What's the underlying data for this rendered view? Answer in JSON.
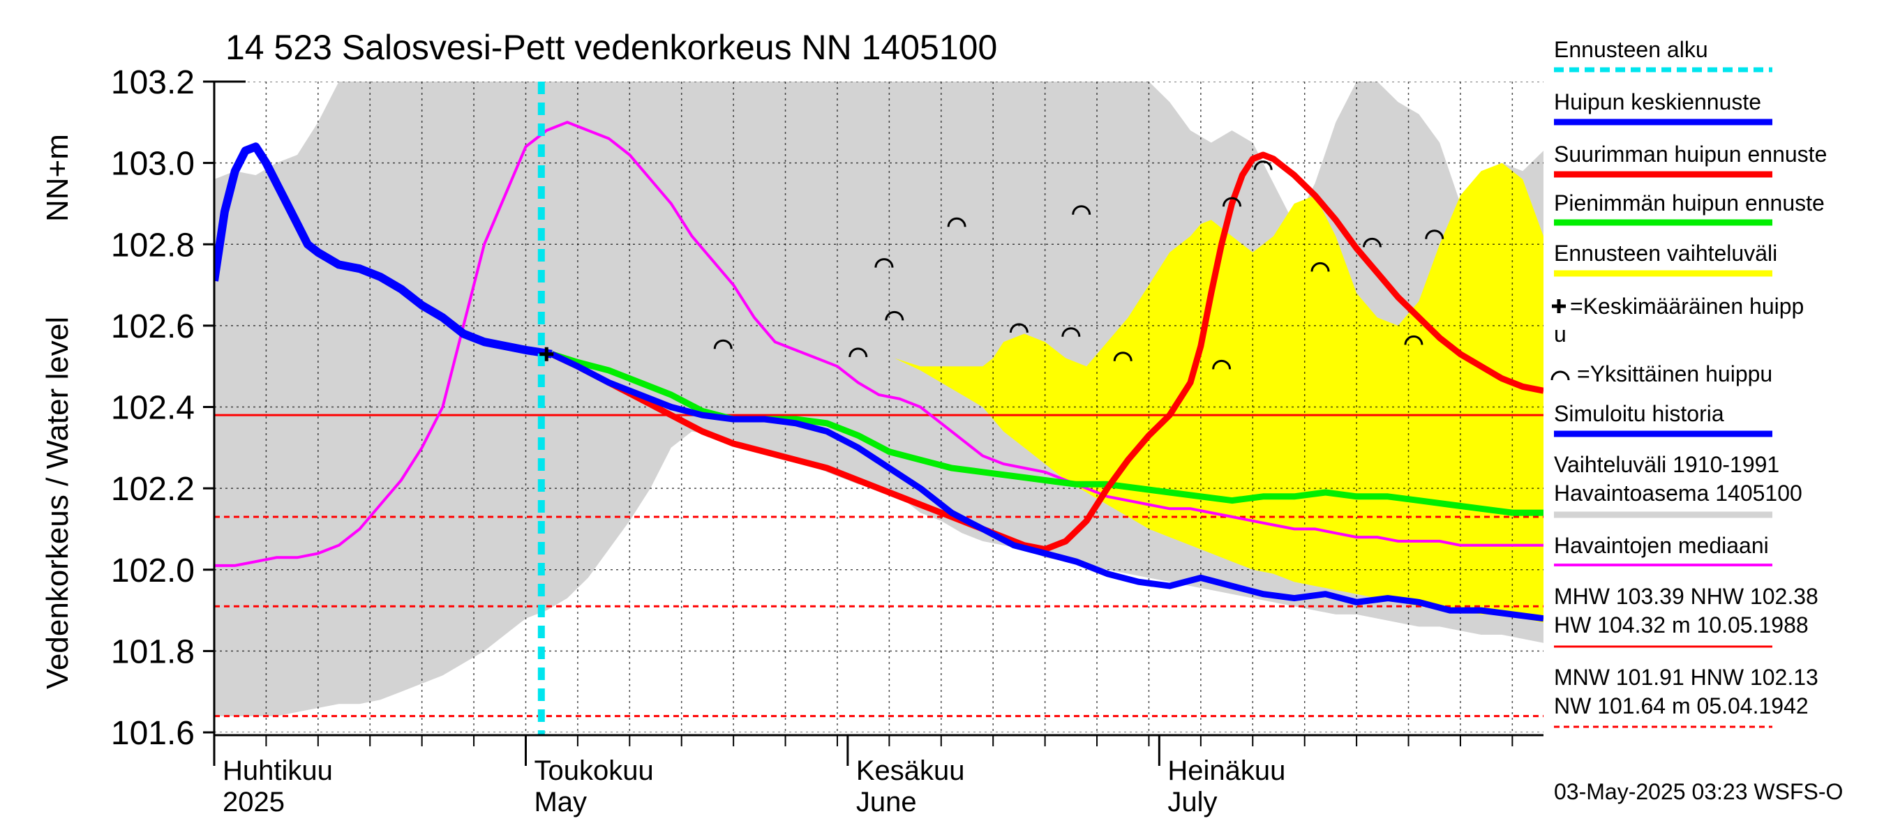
{
  "chart_data": {
    "type": "line",
    "title": "14 523 Salosvesi-Pett vedenkorkeus NN 1405100",
    "ylabel_fi": "Vedenkorkeus / Water level",
    "ylabel_unit": "NN+m",
    "ylim": [
      101.6,
      103.2
    ],
    "yticks": [
      "101.6",
      "101.8",
      "102.0",
      "102.2",
      "102.4",
      "102.6",
      "102.8",
      "103.0",
      "103.2"
    ],
    "x_domain_days": [
      -33,
      95
    ],
    "xaxis_start_date": "2025-03-31",
    "forecast_start_day": 32.5,
    "month_labels": [
      {
        "fi": "Huhtikuu",
        "en": "2025",
        "day": 0
      },
      {
        "fi": "Toukokuu",
        "en": "May",
        "day": 30
      },
      {
        "fi": "Kesäkuu",
        "en": "June",
        "day": 61
      },
      {
        "fi": "Heinäkuu",
        "en": "July",
        "day": 91
      }
    ],
    "grid": true,
    "legend_position": "right",
    "reference_lines": [
      {
        "name": "NHW",
        "value": 102.38,
        "style": "solid",
        "color": "#ff0000"
      },
      {
        "name": "HNW",
        "value": 102.13,
        "style": "dashed",
        "color": "#ff0000"
      },
      {
        "name": "MNW",
        "value": 101.91,
        "style": "dashed",
        "color": "#ff0000"
      },
      {
        "name": "NW",
        "value": 101.64,
        "style": "dashed",
        "color": "#ff0000"
      }
    ],
    "series": [
      {
        "name": "Vaihteluväli 1910-1991 Havaintoasema 1405100",
        "kind": "band",
        "color": "#d3d3d3",
        "x": [
          0,
          2,
          4,
          6,
          8,
          10,
          12,
          14,
          16,
          18,
          20,
          22,
          24,
          26,
          28,
          30,
          32,
          34,
          36,
          38,
          40,
          42,
          44,
          46,
          48,
          50,
          52,
          54,
          56,
          58,
          60,
          62,
          64,
          66,
          68,
          70,
          72,
          74,
          76,
          78,
          80,
          82,
          84,
          86,
          88,
          90,
          92,
          94,
          96,
          98,
          100,
          102,
          104,
          106,
          108,
          110,
          112,
          114,
          116,
          118,
          120,
          122,
          124,
          126,
          128
        ],
        "upper": [
          102.96,
          102.98,
          102.97,
          103.0,
          103.02,
          103.1,
          103.2,
          103.2,
          103.2,
          103.2,
          103.2,
          103.2,
          103.2,
          103.2,
          103.2,
          103.2,
          103.2,
          103.2,
          103.2,
          103.2,
          103.2,
          103.2,
          103.2,
          103.2,
          103.2,
          103.2,
          103.2,
          103.2,
          103.2,
          103.2,
          103.2,
          103.2,
          103.2,
          103.2,
          103.2,
          103.2,
          103.2,
          103.2,
          103.2,
          103.2,
          103.2,
          103.2,
          103.2,
          103.2,
          103.2,
          103.2,
          103.15,
          103.08,
          103.05,
          103.08,
          103.05,
          102.95,
          102.85,
          102.95,
          103.1,
          103.2,
          103.2,
          103.15,
          103.12,
          103.05,
          102.9,
          102.95,
          103.0,
          102.98,
          103.03
        ],
        "lower": [
          101.64,
          101.64,
          101.64,
          101.64,
          101.65,
          101.66,
          101.67,
          101.67,
          101.68,
          101.7,
          101.72,
          101.74,
          101.77,
          101.8,
          101.84,
          101.88,
          101.9,
          101.93,
          101.98,
          102.05,
          102.12,
          102.2,
          102.3,
          102.34,
          102.33,
          102.32,
          102.3,
          102.28,
          102.27,
          102.25,
          102.23,
          102.21,
          102.2,
          102.18,
          102.14,
          102.12,
          102.09,
          102.07,
          102.06,
          102.05,
          102.03,
          102.02,
          102.01,
          102.0,
          101.99,
          101.98,
          101.97,
          101.96,
          101.95,
          101.94,
          101.93,
          101.92,
          101.91,
          101.9,
          101.89,
          101.89,
          101.88,
          101.87,
          101.86,
          101.86,
          101.85,
          101.84,
          101.84,
          101.83,
          101.82
        ]
      },
      {
        "name": "Ennusteen vaihteluväli",
        "kind": "band",
        "color": "#ffff00",
        "x": [
          65.5,
          68,
          70,
          72,
          74,
          75,
          76,
          78,
          80,
          82,
          84,
          86,
          88,
          90,
          92,
          94,
          95,
          96,
          97,
          98,
          99,
          100,
          102,
          104,
          106,
          108,
          110,
          112,
          114,
          116,
          118,
          120,
          122,
          124,
          126,
          128
        ],
        "upper": [
          102.52,
          102.5,
          102.5,
          102.5,
          102.5,
          102.52,
          102.56,
          102.58,
          102.56,
          102.52,
          102.5,
          102.56,
          102.62,
          102.7,
          102.78,
          102.82,
          102.85,
          102.86,
          102.84,
          102.82,
          102.8,
          102.78,
          102.82,
          102.9,
          102.92,
          102.82,
          102.68,
          102.62,
          102.6,
          102.66,
          102.8,
          102.92,
          102.98,
          103.0,
          102.96,
          102.82
        ],
        "lower": [
          102.52,
          102.49,
          102.46,
          102.43,
          102.4,
          102.37,
          102.34,
          102.3,
          102.26,
          102.22,
          102.19,
          102.16,
          102.13,
          102.1,
          102.08,
          102.06,
          102.05,
          102.04,
          102.03,
          102.02,
          102.01,
          102.0,
          101.99,
          101.97,
          101.96,
          101.95,
          101.94,
          101.93,
          101.92,
          101.91,
          101.91,
          101.9,
          101.89,
          101.89,
          101.88,
          101.87
        ]
      },
      {
        "name": "Havaintojen mediaani",
        "kind": "line",
        "color": "#ff00ff",
        "x": [
          0,
          2,
          4,
          6,
          8,
          10,
          12,
          14,
          16,
          18,
          20,
          22,
          24,
          26,
          28,
          30,
          32,
          34,
          36,
          38,
          40,
          42,
          44,
          46,
          48,
          50,
          52,
          54,
          56,
          58,
          60,
          62,
          64,
          66,
          68,
          70,
          72,
          74,
          76,
          78,
          80,
          82,
          84,
          86,
          88,
          90,
          92,
          94,
          96,
          98,
          100,
          102,
          104,
          106,
          108,
          110,
          112,
          114,
          116,
          118,
          120,
          122,
          124,
          126,
          128
        ],
        "values": [
          102.01,
          102.01,
          102.02,
          102.03,
          102.03,
          102.04,
          102.06,
          102.1,
          102.16,
          102.22,
          102.3,
          102.4,
          102.6,
          102.8,
          102.92,
          103.04,
          103.08,
          103.1,
          103.08,
          103.06,
          103.02,
          102.96,
          102.9,
          102.82,
          102.76,
          102.7,
          102.62,
          102.56,
          102.54,
          102.52,
          102.5,
          102.46,
          102.43,
          102.42,
          102.4,
          102.36,
          102.32,
          102.28,
          102.26,
          102.25,
          102.24,
          102.22,
          102.2,
          102.18,
          102.17,
          102.16,
          102.15,
          102.15,
          102.14,
          102.13,
          102.12,
          102.11,
          102.1,
          102.1,
          102.09,
          102.08,
          102.08,
          102.07,
          102.07,
          102.07,
          102.06,
          102.06,
          102.06,
          102.06,
          102.06
        ]
      },
      {
        "name": "Simuloitu historia",
        "kind": "line",
        "color": "#0000ff",
        "x": [
          0,
          1,
          2,
          3,
          4,
          5,
          6,
          7,
          8,
          9,
          10,
          12,
          14,
          16,
          18,
          20,
          22,
          24,
          26,
          28,
          30,
          32.5
        ],
        "values": [
          102.71,
          102.88,
          102.98,
          103.03,
          103.04,
          103.0,
          102.95,
          102.9,
          102.85,
          102.8,
          102.78,
          102.75,
          102.74,
          102.72,
          102.69,
          102.65,
          102.62,
          102.58,
          102.56,
          102.55,
          102.54,
          102.53
        ]
      },
      {
        "name": "Huipun keskiennuste",
        "kind": "line",
        "color": "#0000ff",
        "x": [
          32.5,
          35,
          38,
          41,
          44,
          47,
          50,
          53,
          56,
          59,
          62,
          65,
          68,
          71,
          74,
          77,
          80,
          83,
          86,
          89,
          92,
          95,
          98,
          101,
          104,
          107,
          110,
          113,
          116,
          119,
          122,
          125,
          128
        ],
        "values": [
          102.53,
          102.5,
          102.46,
          102.43,
          102.4,
          102.38,
          102.37,
          102.37,
          102.36,
          102.34,
          102.3,
          102.25,
          102.2,
          102.14,
          102.1,
          102.06,
          102.04,
          102.02,
          101.99,
          101.97,
          101.96,
          101.98,
          101.96,
          101.94,
          101.93,
          101.94,
          101.92,
          101.93,
          101.92,
          101.9,
          101.9,
          101.89,
          101.88
        ]
      },
      {
        "name": "Suurimman huipun ennuste",
        "kind": "line",
        "color": "#ff0000",
        "x": [
          32.5,
          35,
          38,
          41,
          44,
          47,
          50,
          53,
          56,
          59,
          62,
          65,
          68,
          71,
          74,
          76,
          78,
          80,
          82,
          84,
          86,
          88,
          90,
          92,
          94,
          95,
          96,
          97,
          98,
          99,
          100,
          101,
          102,
          103,
          104,
          106,
          108,
          110,
          112,
          114,
          116,
          118,
          120,
          122,
          124,
          126,
          128
        ],
        "values": [
          102.53,
          102.5,
          102.46,
          102.42,
          102.38,
          102.34,
          102.31,
          102.29,
          102.27,
          102.25,
          102.22,
          102.19,
          102.16,
          102.13,
          102.1,
          102.08,
          102.06,
          102.05,
          102.07,
          102.12,
          102.2,
          102.27,
          102.33,
          102.38,
          102.46,
          102.55,
          102.68,
          102.8,
          102.9,
          102.97,
          103.01,
          103.02,
          103.01,
          102.99,
          102.97,
          102.92,
          102.86,
          102.79,
          102.73,
          102.67,
          102.62,
          102.57,
          102.53,
          102.5,
          102.47,
          102.45,
          102.44
        ]
      },
      {
        "name": "Pienimmän huipun ennuste",
        "kind": "line",
        "color": "#00ee00",
        "x": [
          32.5,
          35,
          38,
          41,
          44,
          47,
          50,
          53,
          56,
          59,
          62,
          65,
          68,
          71,
          74,
          77,
          80,
          83,
          86,
          89,
          92,
          95,
          98,
          101,
          104,
          107,
          110,
          113,
          116,
          119,
          122,
          125,
          128
        ],
        "values": [
          102.53,
          102.51,
          102.49,
          102.46,
          102.43,
          102.39,
          102.37,
          102.37,
          102.37,
          102.36,
          102.33,
          102.29,
          102.27,
          102.25,
          102.24,
          102.23,
          102.22,
          102.21,
          102.21,
          102.2,
          102.19,
          102.18,
          102.17,
          102.18,
          102.18,
          102.19,
          102.18,
          102.18,
          102.17,
          102.16,
          102.15,
          102.14,
          102.14
        ]
      }
    ],
    "mean_peak_marker": {
      "day": 32,
      "value": 102.53
    },
    "single_peaks": [
      {
        "day": 49,
        "value": 102.56
      },
      {
        "day": 62,
        "value": 102.54
      },
      {
        "day": 64.5,
        "value": 102.76
      },
      {
        "day": 65.5,
        "value": 102.63
      },
      {
        "day": 71.5,
        "value": 102.86
      },
      {
        "day": 77.5,
        "value": 102.6
      },
      {
        "day": 82.5,
        "value": 102.59
      },
      {
        "day": 83.5,
        "value": 102.89
      },
      {
        "day": 87.5,
        "value": 102.53
      },
      {
        "day": 97,
        "value": 102.51
      },
      {
        "day": 98,
        "value": 102.91
      },
      {
        "day": 101,
        "value": 103.0
      },
      {
        "day": 106.5,
        "value": 102.75
      },
      {
        "day": 111.5,
        "value": 102.81
      },
      {
        "day": 115.5,
        "value": 102.57
      },
      {
        "day": 117.5,
        "value": 102.83
      }
    ]
  },
  "legend": {
    "ennusteen_alku": "Ennusteen alku",
    "huipun_keskiennuste": "Huipun keskiennuste",
    "suurimman": "Suurimman huipun ennuste",
    "pienimman": "Pienimmän huipun ennuste",
    "vaihteluvali": "Ennusteen vaihteluväli",
    "keskimaarainen_line1": "=Keskimääräinen huipp",
    "keskimaarainen_line2": "u",
    "yksittainen": "=Yksittäinen huippu",
    "simuloitu": "Simuloitu historia",
    "hist_line1": "Vaihteluväli 1910-1991",
    "hist_line2": " Havaintoasema 1405100",
    "mediaani": "Havaintojen mediaani",
    "stats1_line1": "MHW 103.39 NHW 102.38",
    "stats1_line2": "HW 104.32 m 10.05.1988",
    "stats2_line1": "MNW 101.91 HNW 102.13",
    "stats2_line2": "NW 101.64 m 05.04.1942",
    "timestamp": "03-May-2025 03:23 WSFS-O"
  },
  "colors": {
    "band_hist": "#d3d3d3",
    "band_forecast": "#ffff00",
    "forecast_start": "#00e5ee",
    "median": "#ff00ff",
    "mean_forecast": "#0000ff",
    "max_forecast": "#ff0000",
    "min_forecast": "#00ee00",
    "reference": "#ff0000"
  }
}
